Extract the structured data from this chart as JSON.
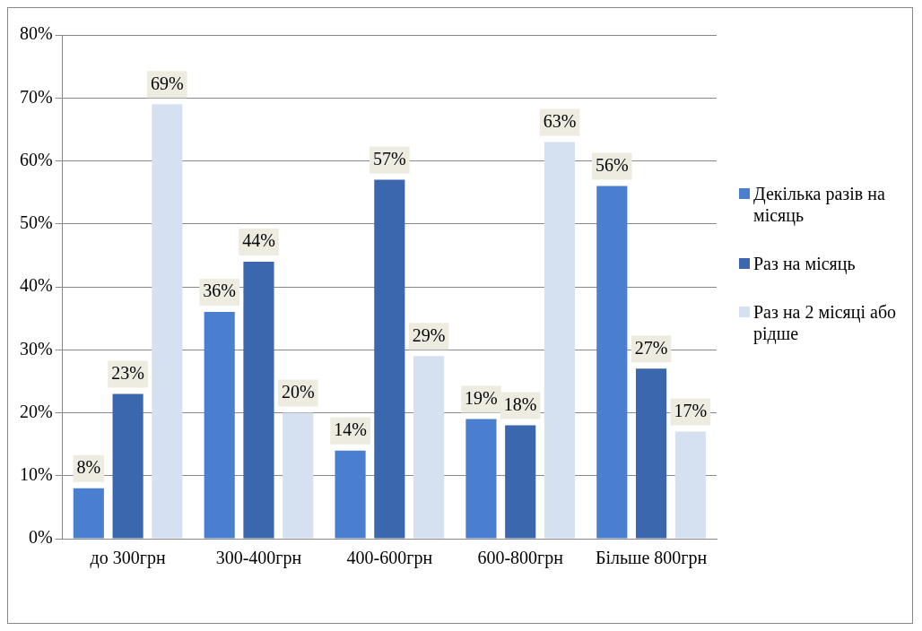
{
  "chart_data": {
    "type": "bar",
    "categories": [
      "до 300грн",
      "300-400грн",
      "400-600грн",
      "600-800грн",
      "Більше 800грн"
    ],
    "series": [
      {
        "name": "Декілька разів на місяць",
        "color": "#4a7fd0",
        "values": [
          8,
          36,
          14,
          19,
          56
        ]
      },
      {
        "name": "Раз на місяць",
        "color": "#3a67ad",
        "values": [
          23,
          44,
          57,
          18,
          27
        ]
      },
      {
        "name": "Раз на 2 місяці або рідше",
        "color": "#d5e0f1",
        "values": [
          69,
          20,
          29,
          63,
          17
        ]
      }
    ],
    "ylim": [
      0,
      80
    ],
    "yticks": [
      {
        "value": 0,
        "label": "0%"
      },
      {
        "value": 10,
        "label": "10%"
      },
      {
        "value": 20,
        "label": "20%"
      },
      {
        "value": 30,
        "label": "30%"
      },
      {
        "value": 40,
        "label": "40%"
      },
      {
        "value": 50,
        "label": "50%"
      },
      {
        "value": 60,
        "label": "60%"
      },
      {
        "value": 70,
        "label": "70%"
      },
      {
        "value": 80,
        "label": "80%"
      }
    ],
    "value_labels": [
      [
        "8%",
        "36%",
        "14%",
        "19%",
        "56%"
      ],
      [
        "23%",
        "44%",
        "57%",
        "18%",
        "27%"
      ],
      [
        "69%",
        "20%",
        "29%",
        "63%",
        "17%"
      ]
    ],
    "grid": "y",
    "legend": "right"
  }
}
